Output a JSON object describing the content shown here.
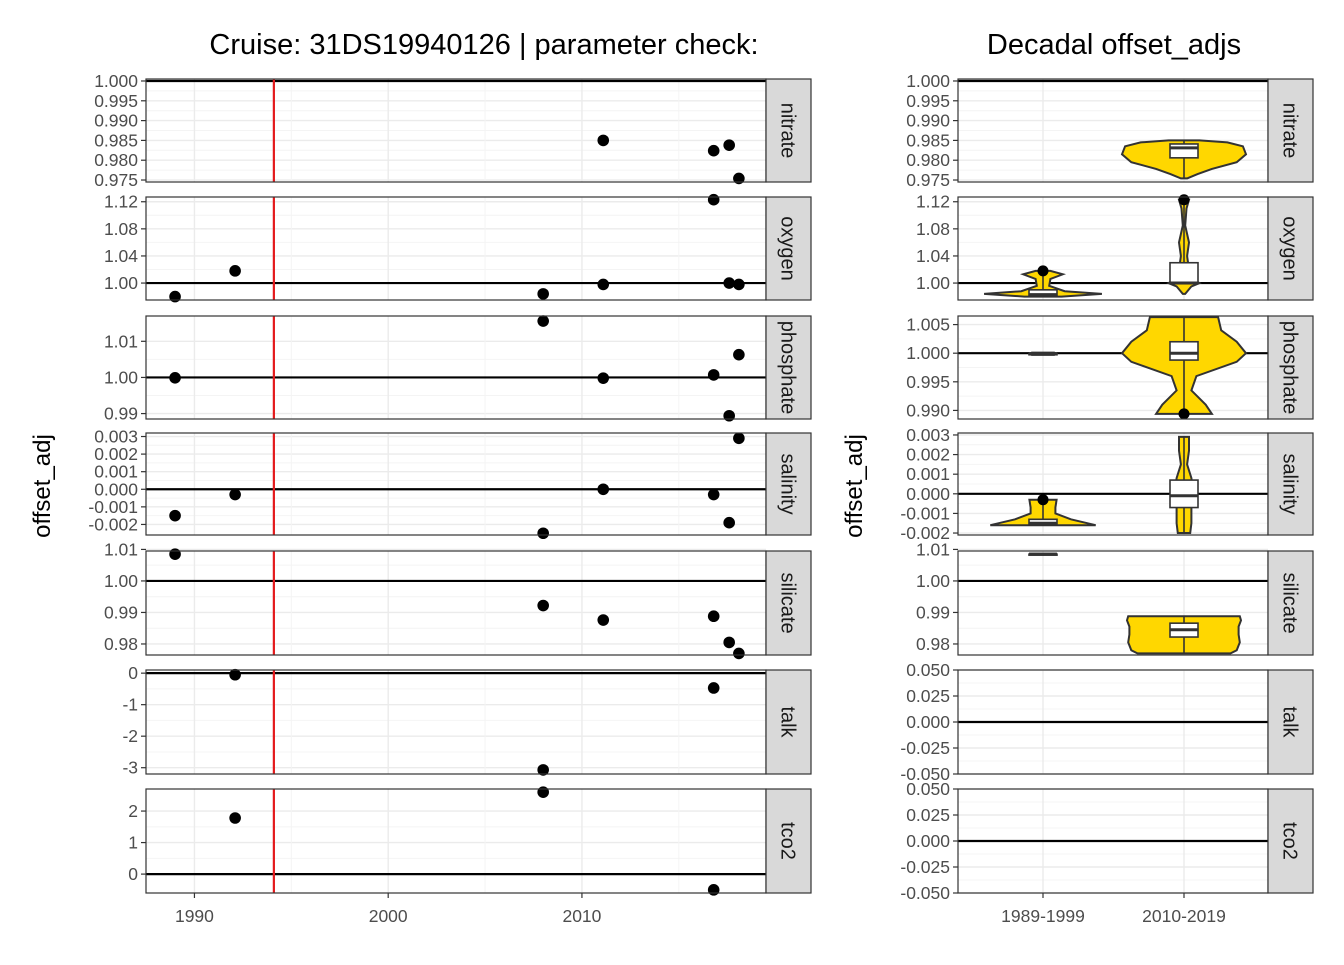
{
  "colors": {
    "grid_major": "#ebebeb",
    "grid_minor": "#f4f4f4",
    "panel_border": "#333333",
    "strip_fill": "#d9d9d9",
    "point": "#000000",
    "cruise_line": "#e41a1c",
    "violin_fill": "#ffd700",
    "violin_stroke": "#333333",
    "text": "#000000",
    "tick_text": "#4d4d4d"
  },
  "chart_data": [
    {
      "type": "scatter",
      "title": "Cruise: 31DS19940126 | parameter check:",
      "ylabel": "offset_adj",
      "xlabel": "",
      "xlim": [
        1987.5,
        2019.5
      ],
      "x_ticks": [
        1990,
        2000,
        2010
      ],
      "x_tick_labels": [
        "1990",
        "2000",
        "2010"
      ],
      "cruise_year": 1994.1,
      "facets": [
        {
          "strip": "nitrate",
          "ylim": [
            0.9745,
            1.0005
          ],
          "y_ticks": [
            1.0,
            0.995,
            0.99,
            0.985,
            0.98,
            0.975
          ],
          "y_tick_labels": [
            "1.000",
            "0.995",
            "0.990",
            "0.985",
            "0.980",
            "0.975"
          ],
          "ref": 1.0,
          "points": [
            [
              2011.1,
              0.985
            ],
            [
              2016.8,
              0.9824
            ],
            [
              2017.6,
              0.9838
            ],
            [
              2018.1,
              0.9754
            ]
          ]
        },
        {
          "strip": "oxygen",
          "ylim": [
            0.975,
            1.127
          ],
          "y_ticks": [
            1.12,
            1.08,
            1.04,
            1.0
          ],
          "y_tick_labels": [
            "1.12",
            "1.08",
            "1.04",
            "1.00"
          ],
          "ref": 1.0,
          "points": [
            [
              1989.0,
              0.98
            ],
            [
              1992.1,
              1.018
            ],
            [
              2008.0,
              0.984
            ],
            [
              2011.1,
              0.998
            ],
            [
              2016.8,
              1.123
            ],
            [
              2017.6,
              1.0
            ],
            [
              2018.1,
              0.998
            ]
          ]
        },
        {
          "strip": "phosphate",
          "ylim": [
            0.9885,
            1.017
          ],
          "y_ticks": [
            1.01,
            1.0,
            0.99
          ],
          "y_tick_labels": [
            "1.01",
            "1.00",
            "0.99"
          ],
          "ref": 1.0,
          "points": [
            [
              1989.0,
              0.9999
            ],
            [
              2008.0,
              1.0156
            ],
            [
              2011.1,
              0.9998
            ],
            [
              2016.8,
              1.0007
            ],
            [
              2017.6,
              0.9894
            ],
            [
              2018.1,
              1.0063
            ]
          ]
        },
        {
          "strip": "salinity",
          "ylim": [
            -0.0026,
            0.0032
          ],
          "y_ticks": [
            0.003,
            0.002,
            0.001,
            0.0,
            -0.001,
            -0.002
          ],
          "y_tick_labels": [
            "0.003",
            "0.002",
            "0.001",
            "0.000",
            "-0.001",
            "-0.002"
          ],
          "ref": 0.0,
          "points": [
            [
              1989.0,
              -0.0015
            ],
            [
              1992.1,
              -0.0003
            ],
            [
              2008.0,
              -0.0025
            ],
            [
              2011.1,
              0.0
            ],
            [
              2016.8,
              -0.0003
            ],
            [
              2017.6,
              -0.0019
            ],
            [
              2018.1,
              0.0029
            ]
          ]
        },
        {
          "strip": "silicate",
          "ylim": [
            0.9765,
            1.0095
          ],
          "y_ticks": [
            1.01,
            1.0,
            0.99,
            0.98
          ],
          "y_tick_labels": [
            "1.01",
            "1.00",
            "0.99",
            "0.98"
          ],
          "ref": 1.0,
          "points": [
            [
              1989.0,
              1.0085
            ],
            [
              2008.0,
              0.9922
            ],
            [
              2011.1,
              0.9876
            ],
            [
              2016.8,
              0.9888
            ],
            [
              2017.6,
              0.9805
            ],
            [
              2018.1,
              0.977
            ]
          ]
        },
        {
          "strip": "talk",
          "ylim": [
            -3.2,
            0.1
          ],
          "y_ticks": [
            0,
            -1,
            -2,
            -3
          ],
          "y_tick_labels": [
            "0",
            "-1",
            "-2",
            "-3"
          ],
          "ref": 0.0,
          "points": [
            [
              1992.1,
              -0.05
            ],
            [
              2008.0,
              -3.07
            ],
            [
              2016.8,
              -0.47
            ]
          ]
        },
        {
          "strip": "tco2",
          "ylim": [
            -0.6,
            2.7
          ],
          "y_ticks": [
            2,
            1,
            0
          ],
          "y_tick_labels": [
            "2",
            "1",
            "0"
          ],
          "ref": 0.0,
          "points": [
            [
              1992.1,
              1.78
            ],
            [
              2008.0,
              2.6
            ],
            [
              2016.8,
              -0.5
            ]
          ]
        }
      ]
    },
    {
      "type": "violin",
      "title": "Decadal offset_adjs",
      "ylabel": "offset_adj",
      "xlabel": "",
      "categories": [
        "1989-1999",
        "2010-2019"
      ],
      "facets": [
        {
          "strip": "nitrate",
          "ylim": [
            0.9745,
            1.0005
          ],
          "y_ticks": [
            1.0,
            0.995,
            0.99,
            0.985,
            0.98,
            0.975
          ],
          "y_tick_labels": [
            "1.000",
            "0.995",
            "0.990",
            "0.985",
            "0.980",
            "0.975"
          ],
          "ref": 1.0,
          "groups": [
            null,
            {
              "min": 0.9754,
              "max": 0.985,
              "profile": [
                [
                  0.9754,
                  0.05
                ],
                [
                  0.9765,
                  0.22
                ],
                [
                  0.9778,
                  0.45
                ],
                [
                  0.9795,
                  0.85
                ],
                [
                  0.9815,
                  1.0
                ],
                [
                  0.9835,
                  0.95
                ],
                [
                  0.9845,
                  0.7
                ],
                [
                  0.985,
                  0.25
                ]
              ],
              "box": {
                "q1": 0.9806,
                "median": 0.9831,
                "q3": 0.9841,
                "wlo": 0.9754,
                "whi": 0.985
              },
              "outliers": []
            }
          ]
        },
        {
          "strip": "oxygen",
          "ylim": [
            0.975,
            1.127
          ],
          "y_ticks": [
            1.12,
            1.08,
            1.04,
            1.0
          ],
          "y_tick_labels": [
            "1.12",
            "1.08",
            "1.04",
            "1.00"
          ],
          "ref": 1.0,
          "groups": [
            {
              "min": 0.98,
              "max": 1.018,
              "profile": [
                [
                  0.98,
                  0.3
                ],
                [
                  0.984,
                  0.95
                ],
                [
                  0.988,
                  0.35
                ],
                [
                  0.996,
                  0.1
                ],
                [
                  1.006,
                  0.12
                ],
                [
                  1.013,
                  0.32
                ],
                [
                  1.018,
                  0.12
                ]
              ],
              "box": {
                "q1": 0.98,
                "median": 0.983,
                "q3": 0.99,
                "wlo": 0.98,
                "whi": 1.018
              },
              "outliers": [
                1.018
              ]
            },
            {
              "min": 0.984,
              "max": 1.123,
              "profile": [
                [
                  0.984,
                  0.02
                ],
                [
                  0.995,
                  0.12
                ],
                [
                  1.0,
                  0.25
                ],
                [
                  1.008,
                  0.1
                ],
                [
                  1.04,
                  0.05
                ],
                [
                  1.06,
                  0.08
                ],
                [
                  1.085,
                  0.02
                ],
                [
                  1.11,
                  0.04
                ],
                [
                  1.123,
                  0.08
                ]
              ],
              "box": {
                "q1": 0.999,
                "median": 1.0,
                "q3": 1.03,
                "wlo": 0.998,
                "whi": 1.123
              },
              "outliers": [
                1.123
              ]
            }
          ]
        },
        {
          "strip": "phosphate",
          "ylim": [
            0.9885,
            1.0065
          ],
          "y_ticks": [
            1.005,
            1.0,
            0.995,
            0.99
          ],
          "y_tick_labels": [
            "1.005",
            "1.000",
            "0.995",
            "0.990"
          ],
          "ref": 1.0,
          "groups": [
            {
              "min": 0.9997,
              "max": 1.0001,
              "profile": [
                [
                  0.9997,
                  0.18
                ],
                [
                  0.9999,
                  0.2
                ],
                [
                  1.0001,
                  0.18
                ]
              ],
              "box": {
                "q1": 0.9999,
                "median": 0.9999,
                "q3": 0.9999,
                "wlo": 0.9999,
                "whi": 0.9999
              },
              "outliers": []
            },
            {
              "min": 0.9894,
              "max": 1.0063,
              "profile": [
                [
                  0.9894,
                  0.45
                ],
                [
                  0.991,
                  0.35
                ],
                [
                  0.9935,
                  0.12
                ],
                [
                  0.996,
                  0.2
                ],
                [
                  0.9985,
                  0.85
                ],
                [
                  1.0,
                  1.0
                ],
                [
                  1.002,
                  0.85
                ],
                [
                  1.004,
                  0.6
                ],
                [
                  1.0063,
                  0.55
                ]
              ],
              "box": {
                "q1": 0.9988,
                "median": 1.0,
                "q3": 1.002,
                "wlo": 0.9894,
                "whi": 1.0063
              },
              "outliers": [
                0.9894
              ]
            }
          ]
        },
        {
          "strip": "salinity",
          "ylim": [
            -0.0021,
            0.0031
          ],
          "y_ticks": [
            0.003,
            0.002,
            0.001,
            0.0,
            -0.001,
            -0.002
          ],
          "y_tick_labels": [
            "0.003",
            "0.002",
            "0.001",
            "0.000",
            "-0.001",
            "-0.002"
          ],
          "ref": 0.0,
          "groups": [
            {
              "min": -0.0016,
              "max": -0.0003,
              "profile": [
                [
                  -0.0016,
                  0.85
                ],
                [
                  -0.0013,
                  0.45
                ],
                [
                  -0.001,
                  0.2
                ],
                [
                  -0.0007,
                  0.2
                ],
                [
                  -0.0003,
                  0.22
                ]
              ],
              "box": {
                "q1": -0.0016,
                "median": -0.0015,
                "q3": -0.0013,
                "wlo": -0.0016,
                "whi": -0.0003
              },
              "outliers": [
                -0.0003
              ]
            },
            {
              "min": -0.002,
              "max": 0.0029,
              "profile": [
                [
                  -0.002,
                  0.1
                ],
                [
                  -0.0015,
                  0.12
                ],
                [
                  -0.0005,
                  0.12
                ],
                [
                  0.0,
                  0.15
                ],
                [
                  0.0008,
                  0.12
                ],
                [
                  0.0015,
                  0.05
                ],
                [
                  0.0022,
                  0.08
                ],
                [
                  0.0029,
                  0.08
                ]
              ],
              "box": {
                "q1": -0.0007,
                "median": -0.0001,
                "q3": 0.0007,
                "wlo": -0.002,
                "whi": 0.0029
              },
              "outliers": []
            }
          ]
        },
        {
          "strip": "silicate",
          "ylim": [
            0.9765,
            1.0095
          ],
          "y_ticks": [
            1.01,
            1.0,
            0.99,
            0.98
          ],
          "y_tick_labels": [
            "1.01",
            "1.00",
            "0.99",
            "0.98"
          ],
          "ref": 1.0,
          "groups": [
            {
              "min": 1.0084,
              "max": 1.0086,
              "profile": [
                [
                  1.0084,
                  0.2
                ],
                [
                  1.0085,
                  0.2
                ],
                [
                  1.0086,
                  0.2
                ]
              ],
              "box": {
                "q1": 1.0085,
                "median": 1.0085,
                "q3": 1.0085,
                "wlo": 1.0085,
                "whi": 1.0085
              },
              "outliers": []
            },
            {
              "min": 0.977,
              "max": 0.9888,
              "profile": [
                [
                  0.977,
                  0.75
                ],
                [
                  0.978,
                  0.85
                ],
                [
                  0.9805,
                  0.9
                ],
                [
                  0.983,
                  0.88
                ],
                [
                  0.9855,
                  0.88
                ],
                [
                  0.9875,
                  0.92
                ],
                [
                  0.9888,
                  0.9
                ]
              ],
              "box": {
                "q1": 0.9822,
                "median": 0.9845,
                "q3": 0.9866,
                "wlo": 0.977,
                "whi": 0.9888
              },
              "outliers": []
            }
          ]
        },
        {
          "strip": "talk",
          "ylim": [
            -0.05,
            0.05
          ],
          "y_ticks": [
            0.05,
            0.025,
            0.0,
            -0.025,
            -0.05
          ],
          "y_tick_labels": [
            "0.050",
            "0.025",
            "0.000",
            "-0.025",
            "-0.050"
          ],
          "ref": 0.0,
          "groups": [
            null,
            null
          ]
        },
        {
          "strip": "tco2",
          "ylim": [
            -0.05,
            0.05
          ],
          "y_ticks": [
            0.05,
            0.025,
            0.0,
            -0.025,
            -0.05
          ],
          "y_tick_labels": [
            "0.050",
            "0.025",
            "0.000",
            "-0.025",
            "-0.050"
          ],
          "ref": 0.0,
          "groups": [
            null,
            null
          ]
        }
      ]
    }
  ]
}
